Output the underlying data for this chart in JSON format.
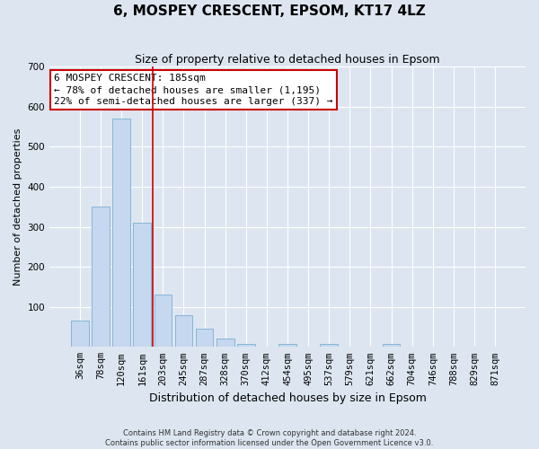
{
  "title": "6, MOSPEY CRESCENT, EPSOM, KT17 4LZ",
  "subtitle": "Size of property relative to detached houses in Epsom",
  "xlabel": "Distribution of detached houses by size in Epsom",
  "ylabel": "Number of detached properties",
  "categories": [
    "36sqm",
    "78sqm",
    "120sqm",
    "161sqm",
    "203sqm",
    "245sqm",
    "287sqm",
    "328sqm",
    "370sqm",
    "412sqm",
    "454sqm",
    "495sqm",
    "537sqm",
    "579sqm",
    "621sqm",
    "662sqm",
    "704sqm",
    "746sqm",
    "788sqm",
    "829sqm",
    "871sqm"
  ],
  "values": [
    65,
    350,
    570,
    310,
    130,
    80,
    45,
    20,
    8,
    0,
    8,
    0,
    8,
    0,
    0,
    8,
    0,
    0,
    0,
    0,
    0
  ],
  "bar_color": "#c5d8ef",
  "bar_edge_color": "#7bafd4",
  "vline_color": "#cc0000",
  "annotation_title": "6 MOSPEY CRESCENT: 185sqm",
  "annotation_line1": "← 78% of detached houses are smaller (1,195)",
  "annotation_line2": "22% of semi-detached houses are larger (337) →",
  "annotation_box_color": "#ffffff",
  "annotation_box_edge": "#cc0000",
  "background_color": "#dde6f0",
  "plot_bg_color": "#dde6f0",
  "footer": "Contains HM Land Registry data © Crown copyright and database right 2024.\nContains public sector information licensed under the Open Government Licence v3.0.",
  "ylim": [
    0,
    700
  ],
  "yticks": [
    0,
    100,
    200,
    300,
    400,
    500,
    600,
    700
  ],
  "title_fontsize": 11,
  "subtitle_fontsize": 9,
  "ylabel_fontsize": 8,
  "xlabel_fontsize": 9,
  "tick_fontsize": 7.5,
  "annotation_fontsize": 8,
  "footer_fontsize": 6
}
